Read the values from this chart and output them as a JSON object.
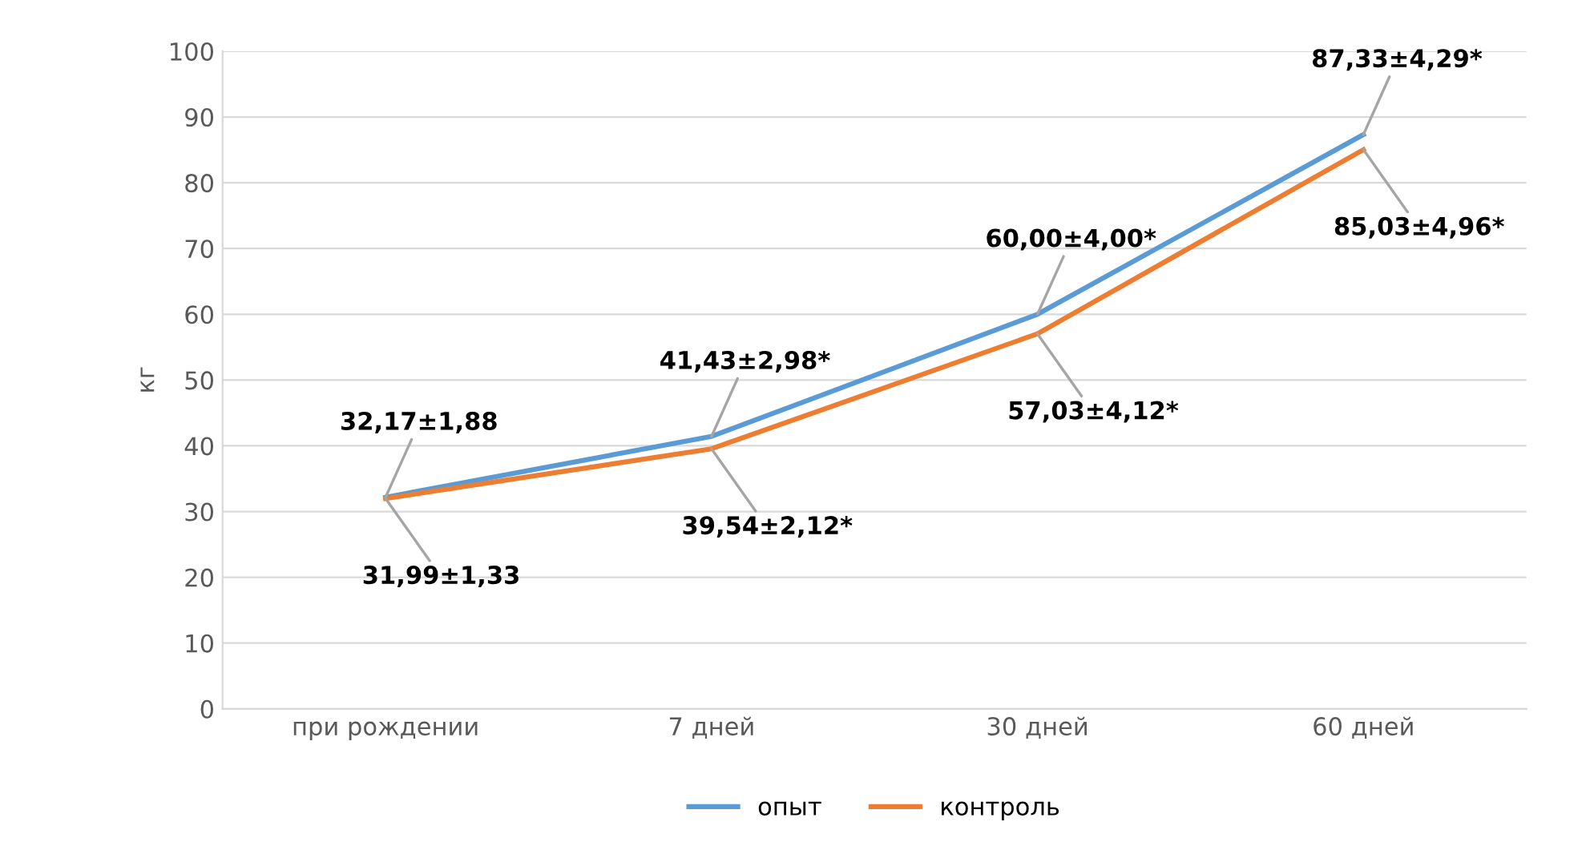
{
  "chart_data": {
    "type": "line",
    "ylabel": "кг",
    "categories": [
      "при рождении",
      "7 дней",
      "30 дней",
      "60 дней"
    ],
    "series": [
      {
        "name": "опыт",
        "color": "#5b9bd5",
        "values": [
          32.17,
          41.43,
          60.0,
          87.33
        ],
        "value_labels": [
          "32,17±1,88",
          "41,43±2,98*",
          "60,00±4,00*",
          "87,33±4,29*"
        ]
      },
      {
        "name": "контроль",
        "color": "#ed7d31",
        "values": [
          31.99,
          39.54,
          57.03,
          85.03
        ],
        "value_labels": [
          "31,99±1,33",
          "39,54±2,12*",
          "57,03±4,12*",
          "85,03±4,96*"
        ]
      }
    ],
    "ylim": [
      0,
      100
    ],
    "yticks": [
      0,
      10,
      20,
      30,
      40,
      50,
      60,
      70,
      80,
      90,
      100
    ],
    "grid": "y",
    "legend": "bottom",
    "marker": "none",
    "line_style": "solid"
  }
}
